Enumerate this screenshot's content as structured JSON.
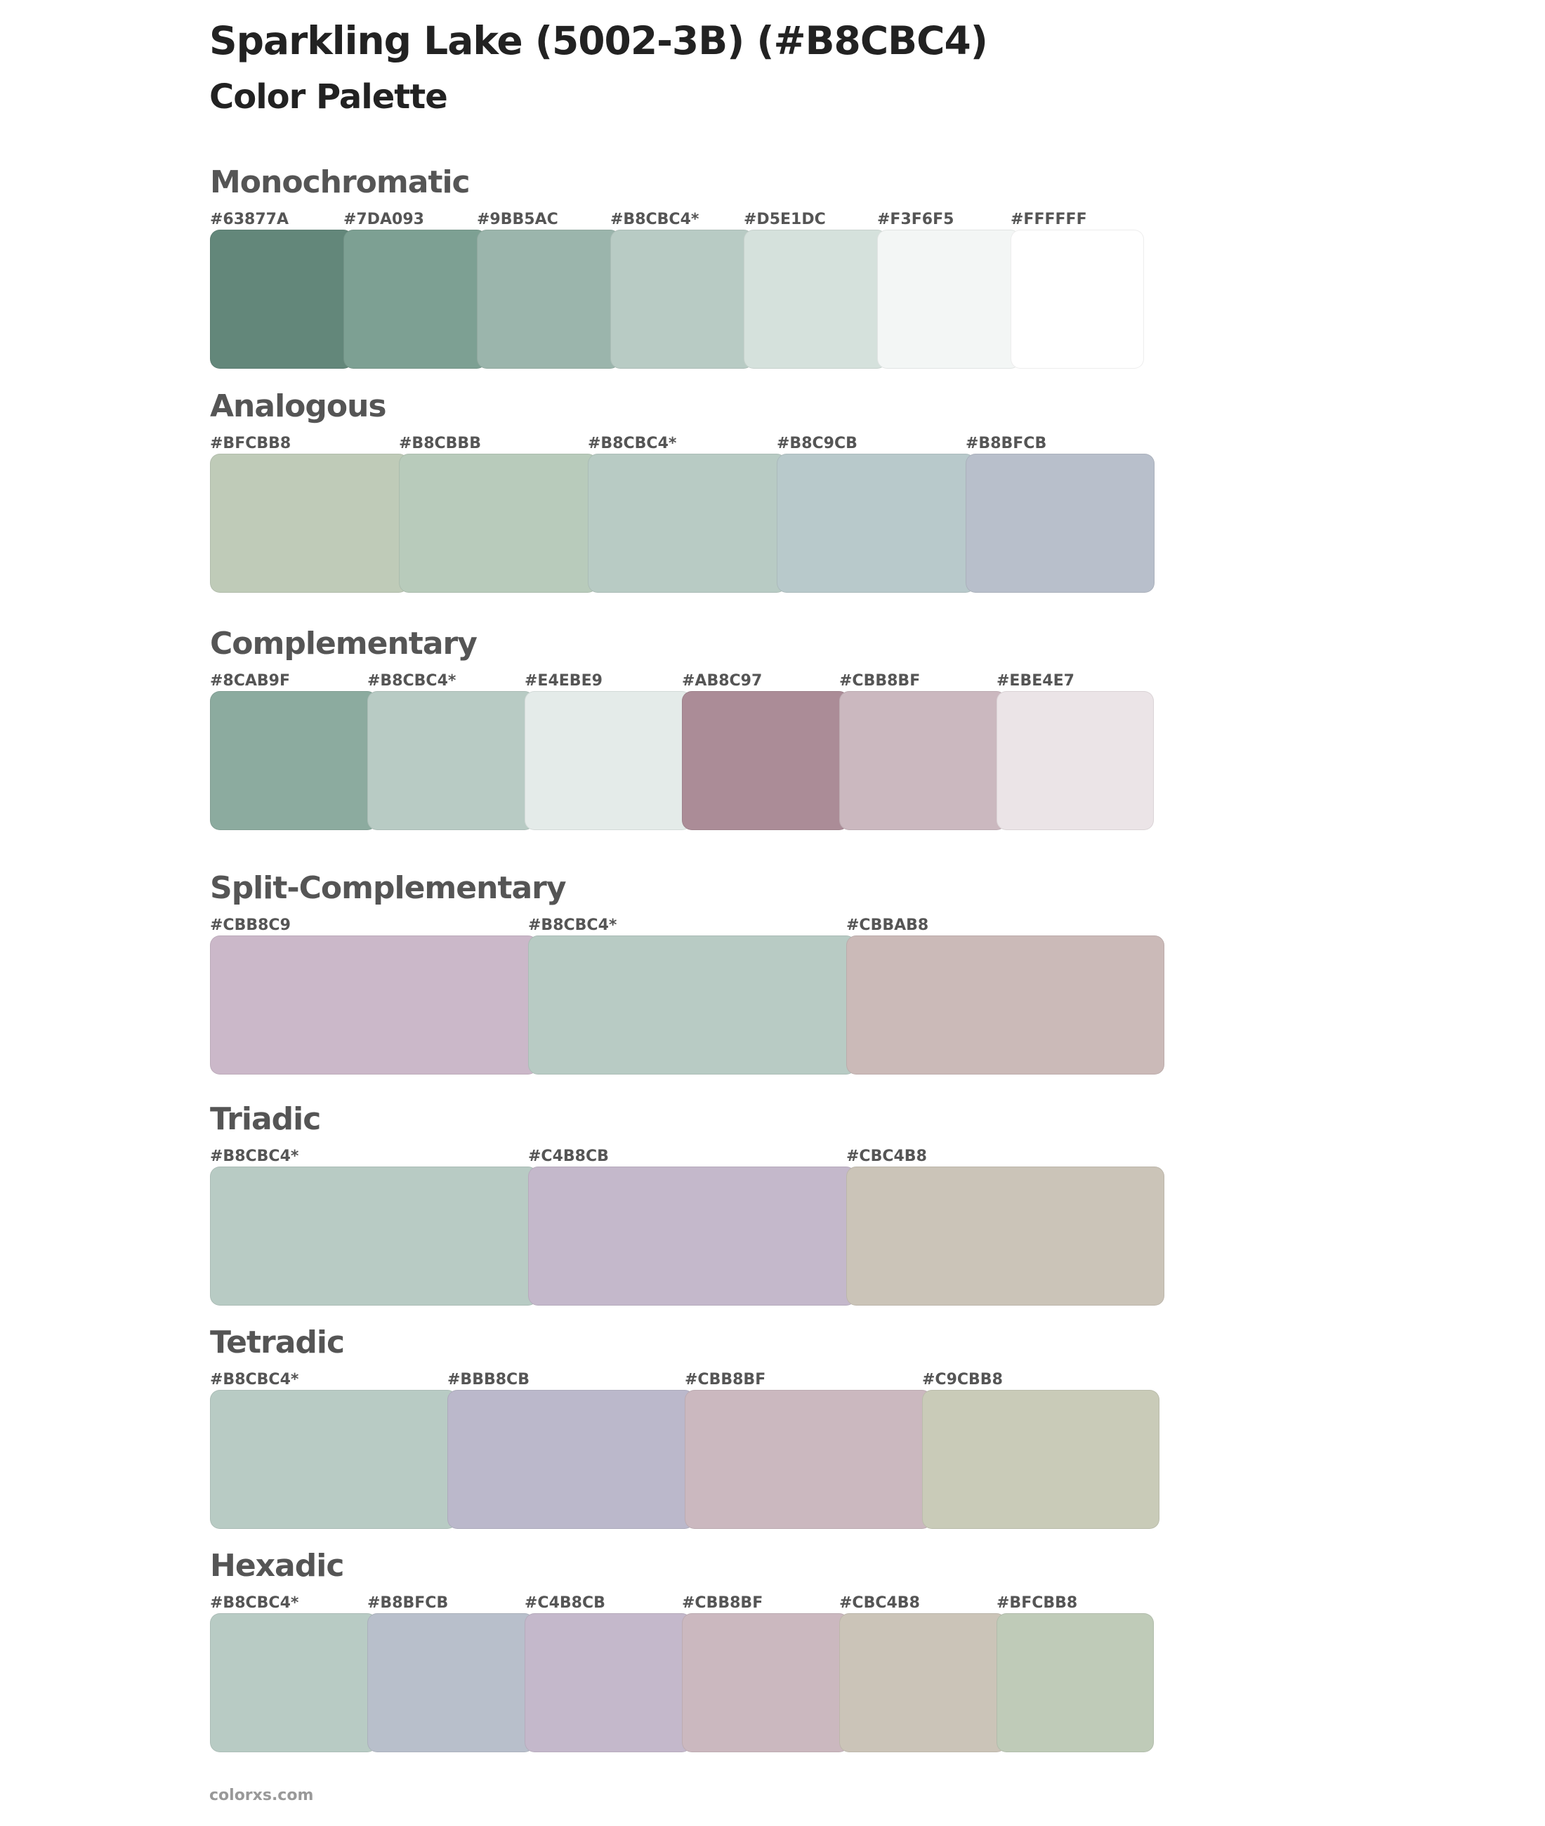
{
  "header": {
    "title": "Sparkling Lake (5002-3B) (#B8CBC4)",
    "subtitle": "Color Palette"
  },
  "sections": [
    {
      "name": "Monochromatic",
      "swatches": [
        {
          "label": "#63877A",
          "color": "#63877A"
        },
        {
          "label": "#7DA093",
          "color": "#7DA093"
        },
        {
          "label": "#9BB5AC",
          "color": "#9BB5AC"
        },
        {
          "label": "#B8CBC4*",
          "color": "#B8CBC4"
        },
        {
          "label": "#D5E1DC",
          "color": "#D5E1DC"
        },
        {
          "label": "#F3F6F5",
          "color": "#F3F6F5"
        },
        {
          "label": "#FFFFFF",
          "color": "#FFFFFF"
        }
      ]
    },
    {
      "name": "Analogous",
      "swatches": [
        {
          "label": "#BFCBB8",
          "color": "#BFCBB8"
        },
        {
          "label": "#B8CBBB",
          "color": "#B8CBBB"
        },
        {
          "label": "#B8CBC4*",
          "color": "#B8CBC4"
        },
        {
          "label": "#B8C9CB",
          "color": "#B8C9CB"
        },
        {
          "label": "#B8BFCB",
          "color": "#B8BFCB"
        }
      ]
    },
    {
      "name": "Complementary",
      "swatches": [
        {
          "label": "#8CAB9F",
          "color": "#8CAB9F"
        },
        {
          "label": "#B8CBC4*",
          "color": "#B8CBC4"
        },
        {
          "label": "#E4EBE9",
          "color": "#E4EBE9"
        },
        {
          "label": "#AB8C97",
          "color": "#AB8C97"
        },
        {
          "label": "#CBB8BF",
          "color": "#CBB8BF"
        },
        {
          "label": "#EBE4E7",
          "color": "#EBE4E7"
        }
      ]
    },
    {
      "name": "Split-Complementary",
      "swatches": [
        {
          "label": "#CBB8C9",
          "color": "#CBB8C9"
        },
        {
          "label": "#B8CBC4*",
          "color": "#B8CBC4"
        },
        {
          "label": "#CBBAB8",
          "color": "#CBBAB8"
        }
      ]
    },
    {
      "name": "Triadic",
      "swatches": [
        {
          "label": "#B8CBC4*",
          "color": "#B8CBC4"
        },
        {
          "label": "#C4B8CB",
          "color": "#C4B8CB"
        },
        {
          "label": "#CBC4B8",
          "color": "#CBC4B8"
        }
      ]
    },
    {
      "name": "Tetradic",
      "swatches": [
        {
          "label": "#B8CBC4*",
          "color": "#B8CBC4"
        },
        {
          "label": "#BBB8CB",
          "color": "#BBB8CB"
        },
        {
          "label": "#CBB8BF",
          "color": "#CBB8BF"
        },
        {
          "label": "#C9CBB8",
          "color": "#C9CBB8"
        }
      ]
    },
    {
      "name": "Hexadic",
      "swatches": [
        {
          "label": "#B8CBC4*",
          "color": "#B8CBC4"
        },
        {
          "label": "#B8BFCB",
          "color": "#B8BFCB"
        },
        {
          "label": "#C4B8CB",
          "color": "#C4B8CB"
        },
        {
          "label": "#CBB8BF",
          "color": "#CBB8BF"
        },
        {
          "label": "#CBC4B8",
          "color": "#CBC4B8"
        },
        {
          "label": "#BFCBB8",
          "color": "#BFCBB8"
        }
      ]
    }
  ],
  "footer": "colorxs.com"
}
